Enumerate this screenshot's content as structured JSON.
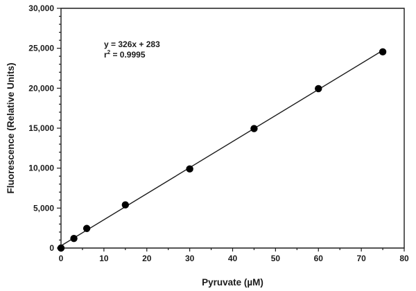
{
  "chart_data": {
    "type": "scatter",
    "xlabel": "Pyruvate (µM)",
    "ylabel": "Fluorescence (Relative Units)",
    "xlim": [
      0,
      80
    ],
    "ylim": [
      0,
      30000
    ],
    "x_ticks": [
      0,
      10,
      20,
      30,
      40,
      50,
      60,
      70,
      80
    ],
    "x_tick_labels": [
      "0",
      "10",
      "20",
      "30",
      "40",
      "50",
      "60",
      "70",
      "80"
    ],
    "y_ticks": [
      0,
      5000,
      10000,
      15000,
      20000,
      25000,
      30000
    ],
    "y_tick_labels": [
      "0",
      "5,000",
      "10,000",
      "15,000",
      "20,000",
      "25,000",
      "30,000"
    ],
    "grid": false,
    "series": [
      {
        "x": [
          0,
          3,
          6,
          15,
          30,
          45,
          60,
          75
        ],
        "y": [
          0,
          1200,
          2450,
          5400,
          9900,
          14950,
          19950,
          24550
        ],
        "color": "#000000"
      }
    ],
    "fit": {
      "slope": 326,
      "intercept": 283,
      "x_range": [
        0,
        75
      ],
      "color": "#1a1a1a"
    },
    "annotations": {
      "equation": "y = 326x + 283",
      "r_prefix": "r",
      "r_exponent": "2",
      "r_value": " = 0.9995"
    }
  }
}
